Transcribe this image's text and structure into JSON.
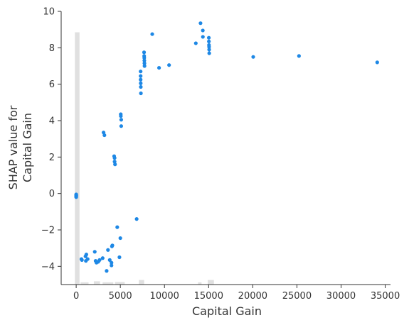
{
  "chart_data": {
    "type": "scatter",
    "title": "",
    "xlabel": "Capital Gain",
    "ylabel_lines": [
      "SHAP value for",
      "Capital Gain"
    ],
    "xlim": [
      -1700,
      35600
    ],
    "ylim": [
      -5.0,
      10.0
    ],
    "x_ticks": [
      0,
      5000,
      10000,
      15000,
      20000,
      25000,
      30000,
      35000
    ],
    "x_tick_labels": [
      "0",
      "5000",
      "10000",
      "15000",
      "20000",
      "25000",
      "30000",
      "35000"
    ],
    "y_ticks": [
      -4,
      -2,
      0,
      2,
      4,
      6,
      8,
      10
    ],
    "y_tick_labels": [
      "−4",
      "−2",
      "0",
      "2",
      "4",
      "6",
      "8",
      "10"
    ],
    "grid": false,
    "point_color": "#1e88e5",
    "histogram_color": "#e0e0e0",
    "histogram_top": 8.85,
    "histogram": [
      {
        "x0": -150,
        "x1": 380,
        "top": 8.85
      },
      {
        "x0": 500,
        "x1": 1400,
        "top": -4.88
      },
      {
        "x0": 2000,
        "x1": 2700,
        "top": -4.82
      },
      {
        "x0": 3000,
        "x1": 4200,
        "top": -4.88
      },
      {
        "x0": 4400,
        "x1": 5500,
        "top": -4.86
      },
      {
        "x0": 7100,
        "x1": 7700,
        "top": -4.75
      },
      {
        "x0": 13800,
        "x1": 14200,
        "top": -4.88
      },
      {
        "x0": 14900,
        "x1": 15600,
        "top": -4.75
      }
    ],
    "points": [
      [
        0,
        -0.08
      ],
      [
        0,
        -0.12
      ],
      [
        0,
        -0.15
      ],
      [
        0,
        -0.18
      ],
      [
        0,
        -0.2
      ],
      [
        0,
        -0.1
      ],
      [
        0,
        -0.05
      ],
      [
        594,
        -3.6
      ],
      [
        650,
        -3.65
      ],
      [
        1055,
        -3.45
      ],
      [
        1100,
        -3.7
      ],
      [
        1150,
        -3.35
      ],
      [
        1300,
        -3.6
      ],
      [
        2105,
        -3.2
      ],
      [
        2202,
        -3.7
      ],
      [
        2300,
        -3.8
      ],
      [
        2500,
        -3.75
      ],
      [
        2650,
        -3.65
      ],
      [
        3000,
        -3.55
      ],
      [
        3100,
        3.35
      ],
      [
        3200,
        3.2
      ],
      [
        3450,
        -4.25
      ],
      [
        3600,
        -3.1
      ],
      [
        3800,
        -3.65
      ],
      [
        4000,
        -3.8
      ],
      [
        4000,
        -3.95
      ],
      [
        4050,
        -2.9
      ],
      [
        4100,
        -2.85
      ],
      [
        4300,
        2.05
      ],
      [
        4350,
        1.95
      ],
      [
        4350,
        1.75
      ],
      [
        4400,
        1.6
      ],
      [
        4650,
        -1.85
      ],
      [
        4900,
        -3.5
      ],
      [
        5000,
        -2.45
      ],
      [
        5050,
        4.35
      ],
      [
        5060,
        4.25
      ],
      [
        5100,
        4.05
      ],
      [
        5100,
        3.7
      ],
      [
        6850,
        -1.4
      ],
      [
        7298,
        6.7
      ],
      [
        7300,
        6.45
      ],
      [
        7300,
        6.25
      ],
      [
        7310,
        6.05
      ],
      [
        7320,
        5.85
      ],
      [
        7330,
        5.5
      ],
      [
        7688,
        7.75
      ],
      [
        7700,
        7.55
      ],
      [
        7710,
        7.45
      ],
      [
        7720,
        7.3
      ],
      [
        7730,
        7.15
      ],
      [
        7740,
        7.0
      ],
      [
        8614,
        8.75
      ],
      [
        9386,
        6.9
      ],
      [
        10520,
        7.05
      ],
      [
        13550,
        8.25
      ],
      [
        14084,
        9.35
      ],
      [
        14344,
        8.95
      ],
      [
        14350,
        8.6
      ],
      [
        15024,
        8.55
      ],
      [
        15030,
        8.35
      ],
      [
        15040,
        8.15
      ],
      [
        15050,
        8.05
      ],
      [
        15060,
        7.9
      ],
      [
        15070,
        7.7
      ],
      [
        20051,
        7.5
      ],
      [
        25236,
        7.55
      ],
      [
        34095,
        7.2
      ]
    ]
  }
}
